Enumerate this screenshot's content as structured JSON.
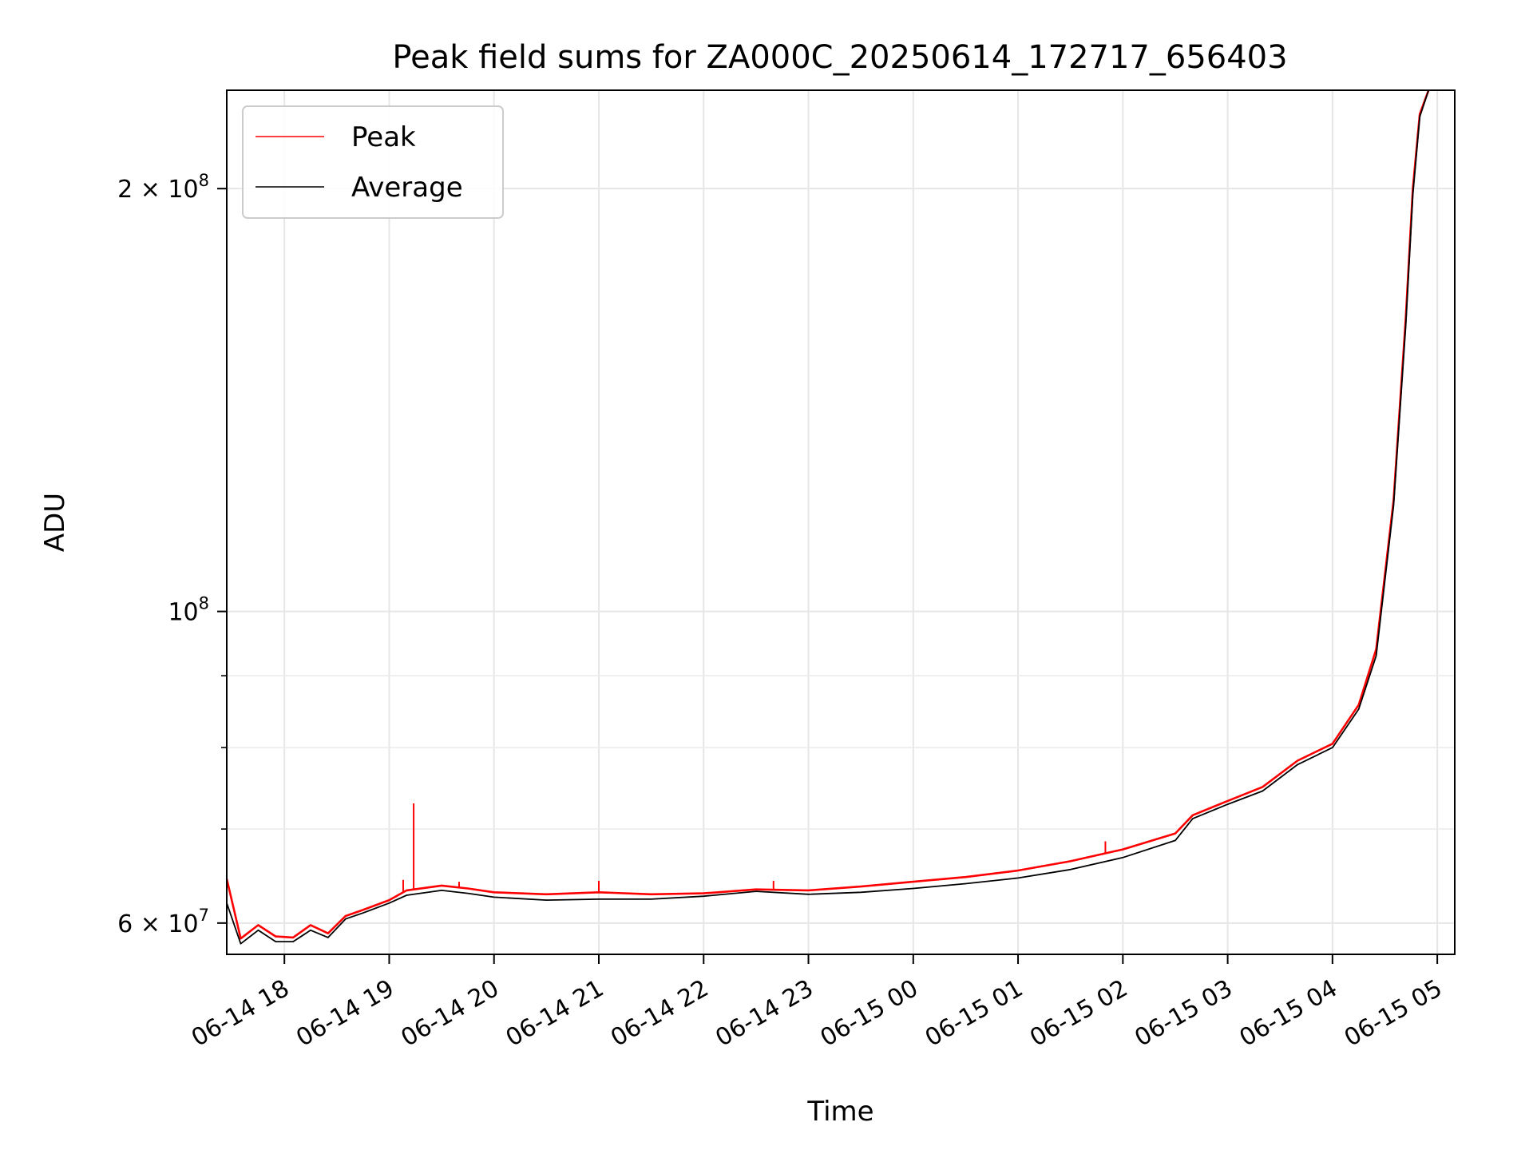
{
  "chart_data": {
    "type": "line",
    "title": "Peak field sums for ZA000C_20250614_172717_656403",
    "xlabel": "Time",
    "ylabel": "ADU",
    "y_scale": "log",
    "ylim": [
      57000000,
      235000000
    ],
    "xlim": [
      "2025-06-14 17:27",
      "2025-06-15 05:10"
    ],
    "x_ticks": [
      {
        "t": "2025-06-14 18:00",
        "label": "06-14 18"
      },
      {
        "t": "2025-06-14 19:00",
        "label": "06-14 19"
      },
      {
        "t": "2025-06-14 20:00",
        "label": "06-14 20"
      },
      {
        "t": "2025-06-14 21:00",
        "label": "06-14 21"
      },
      {
        "t": "2025-06-14 22:00",
        "label": "06-14 22"
      },
      {
        "t": "2025-06-14 23:00",
        "label": "06-14 23"
      },
      {
        "t": "2025-06-15 00:00",
        "label": "06-15 00"
      },
      {
        "t": "2025-06-15 01:00",
        "label": "06-15 01"
      },
      {
        "t": "2025-06-15 02:00",
        "label": "06-15 02"
      },
      {
        "t": "2025-06-15 03:00",
        "label": "06-15 03"
      },
      {
        "t": "2025-06-15 04:00",
        "label": "06-15 04"
      },
      {
        "t": "2025-06-15 05:00",
        "label": "06-15 05"
      }
    ],
    "y_ticks_major": [
      {
        "v": 60000000,
        "base": "6 × 10",
        "exp": "7"
      },
      {
        "v": 100000000,
        "base": "10",
        "exp": "8"
      },
      {
        "v": 200000000,
        "base": "2 × 10",
        "exp": "8"
      }
    ],
    "y_ticks_minor": [
      70000000,
      80000000,
      90000000
    ],
    "grid": true,
    "legend_position": "top-left",
    "series": [
      {
        "name": "Peak",
        "color": "#ff0000",
        "points": [
          [
            "2025-06-14 17:27",
            64500000
          ],
          [
            "2025-06-14 17:35",
            58500000
          ],
          [
            "2025-06-14 17:45",
            59800000
          ],
          [
            "2025-06-14 17:55",
            58700000
          ],
          [
            "2025-06-14 18:05",
            58600000
          ],
          [
            "2025-06-14 18:15",
            59800000
          ],
          [
            "2025-06-14 18:25",
            59000000
          ],
          [
            "2025-06-14 18:35",
            60700000
          ],
          [
            "2025-06-14 18:45",
            61300000
          ],
          [
            "2025-06-14 19:00",
            62300000
          ],
          [
            "2025-06-14 19:10",
            63300000
          ],
          [
            "2025-06-14 19:30",
            63800000
          ],
          [
            "2025-06-14 19:45",
            63500000
          ],
          [
            "2025-06-14 20:00",
            63100000
          ],
          [
            "2025-06-14 20:30",
            62900000
          ],
          [
            "2025-06-14 21:00",
            63100000
          ],
          [
            "2025-06-14 21:30",
            62900000
          ],
          [
            "2025-06-14 22:00",
            63000000
          ],
          [
            "2025-06-14 22:30",
            63400000
          ],
          [
            "2025-06-14 23:00",
            63300000
          ],
          [
            "2025-06-14 23:30",
            63700000
          ],
          [
            "2025-06-15 00:00",
            64200000
          ],
          [
            "2025-06-15 00:30",
            64700000
          ],
          [
            "2025-06-15 01:00",
            65400000
          ],
          [
            "2025-06-15 01:30",
            66400000
          ],
          [
            "2025-06-15 02:00",
            67700000
          ],
          [
            "2025-06-15 02:30",
            69500000
          ],
          [
            "2025-06-15 02:40",
            71600000
          ],
          [
            "2025-06-15 03:00",
            73300000
          ],
          [
            "2025-06-15 03:20",
            75000000
          ],
          [
            "2025-06-15 03:40",
            78300000
          ],
          [
            "2025-06-15 04:00",
            80500000
          ],
          [
            "2025-06-15 04:15",
            85800000
          ],
          [
            "2025-06-15 04:25",
            94000000
          ],
          [
            "2025-06-15 04:35",
            120000000
          ],
          [
            "2025-06-15 04:42",
            162000000
          ],
          [
            "2025-06-15 04:46",
            200000000
          ],
          [
            "2025-06-15 04:50",
            226000000
          ],
          [
            "2025-06-15 04:55",
            235000000
          ]
        ]
      },
      {
        "name": "Average",
        "color": "#000000",
        "points": [
          [
            "2025-06-14 17:27",
            62000000
          ],
          [
            "2025-06-14 17:35",
            58000000
          ],
          [
            "2025-06-14 17:45",
            59300000
          ],
          [
            "2025-06-14 17:55",
            58200000
          ],
          [
            "2025-06-14 18:05",
            58200000
          ],
          [
            "2025-06-14 18:15",
            59300000
          ],
          [
            "2025-06-14 18:25",
            58600000
          ],
          [
            "2025-06-14 18:35",
            60400000
          ],
          [
            "2025-06-14 18:45",
            61000000
          ],
          [
            "2025-06-14 19:00",
            62000000
          ],
          [
            "2025-06-14 19:10",
            62800000
          ],
          [
            "2025-06-14 19:30",
            63300000
          ],
          [
            "2025-06-14 19:45",
            63000000
          ],
          [
            "2025-06-14 20:00",
            62600000
          ],
          [
            "2025-06-14 20:30",
            62300000
          ],
          [
            "2025-06-14 21:00",
            62400000
          ],
          [
            "2025-06-14 21:30",
            62400000
          ],
          [
            "2025-06-14 22:00",
            62700000
          ],
          [
            "2025-06-14 22:30",
            63200000
          ],
          [
            "2025-06-14 23:00",
            62900000
          ],
          [
            "2025-06-14 23:30",
            63100000
          ],
          [
            "2025-06-15 00:00",
            63500000
          ],
          [
            "2025-06-15 00:30",
            64000000
          ],
          [
            "2025-06-15 01:00",
            64600000
          ],
          [
            "2025-06-15 01:30",
            65500000
          ],
          [
            "2025-06-15 02:00",
            66800000
          ],
          [
            "2025-06-15 02:30",
            68700000
          ],
          [
            "2025-06-15 02:40",
            71200000
          ],
          [
            "2025-06-15 03:00",
            72900000
          ],
          [
            "2025-06-15 03:20",
            74500000
          ],
          [
            "2025-06-15 03:40",
            77800000
          ],
          [
            "2025-06-15 04:00",
            80000000
          ],
          [
            "2025-06-15 04:15",
            85200000
          ],
          [
            "2025-06-15 04:25",
            93000000
          ],
          [
            "2025-06-15 04:35",
            119000000
          ],
          [
            "2025-06-15 04:42",
            160000000
          ],
          [
            "2025-06-15 04:46",
            198000000
          ],
          [
            "2025-06-15 04:50",
            225000000
          ],
          [
            "2025-06-15 04:55",
            235000000
          ]
        ]
      }
    ],
    "spikes": [
      {
        "series": "Peak",
        "t": "2025-06-14 19:14",
        "value": 73000000
      },
      {
        "series": "Peak",
        "t": "2025-06-14 19:08",
        "value": 64400000
      },
      {
        "series": "Peak",
        "t": "2025-06-14 19:40",
        "value": 64200000
      },
      {
        "series": "Peak",
        "t": "2025-06-14 21:00",
        "value": 64300000
      },
      {
        "series": "Peak",
        "t": "2025-06-14 22:40",
        "value": 64300000
      },
      {
        "series": "Peak",
        "t": "2025-06-15 01:50",
        "value": 68600000
      }
    ]
  }
}
